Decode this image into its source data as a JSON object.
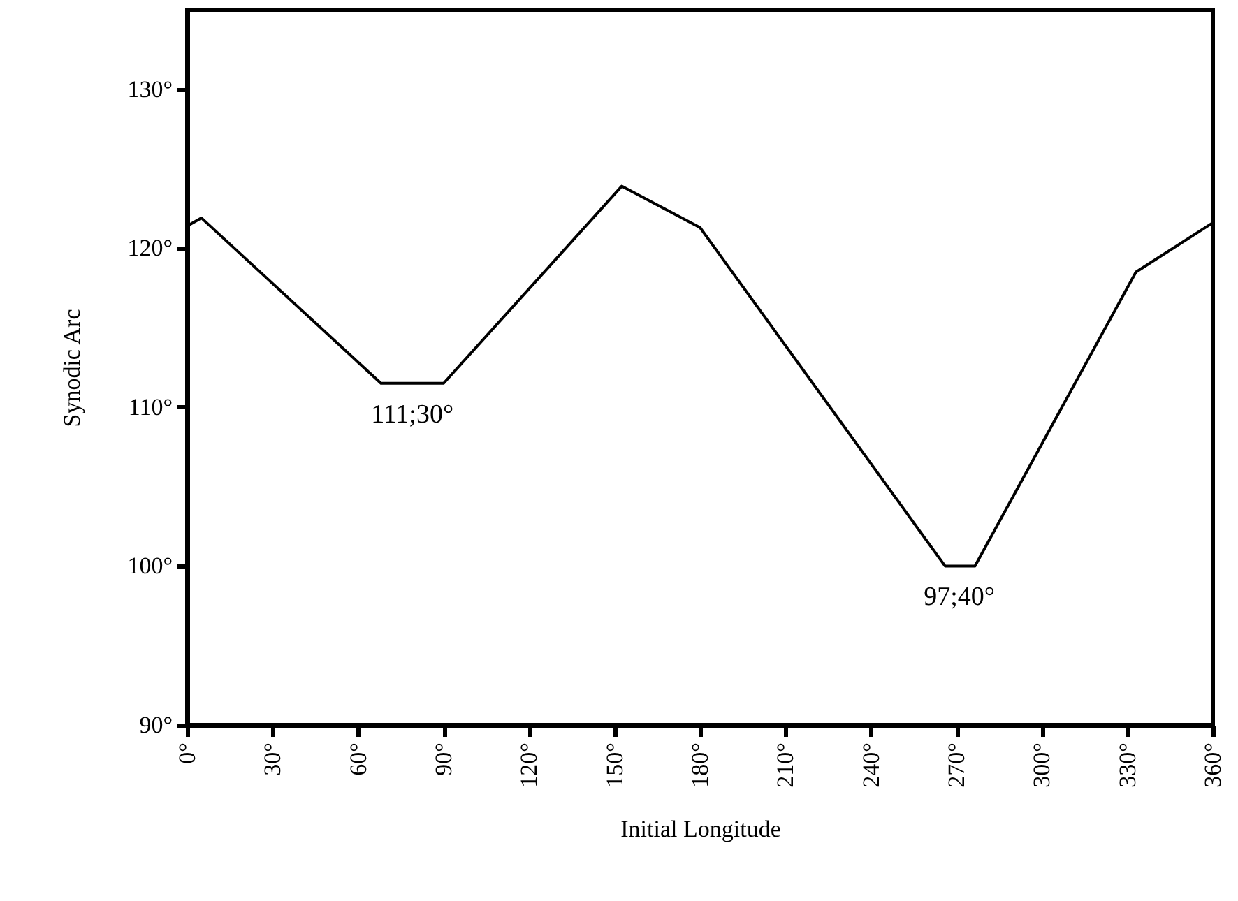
{
  "chart_data": {
    "type": "line",
    "xlabel": "Initial Longitude",
    "ylabel": "Synodic Arc",
    "x": [
      0,
      5,
      68,
      90,
      152.5,
      180,
      266,
      276.5,
      333,
      360
    ],
    "series": [
      {
        "color": "#000000",
        "values": [
          121.4,
          121.9,
          111.5,
          111.5,
          123.9,
          121.3,
          100,
          100,
          118.5,
          121.6
        ]
      }
    ],
    "xlim": [
      0,
      360
    ],
    "xticks": [
      {
        "value": 0,
        "label": "0°"
      },
      {
        "value": 30,
        "label": "30°"
      },
      {
        "value": 60,
        "label": "60°"
      },
      {
        "value": 90,
        "label": "90°"
      },
      {
        "value": 120,
        "label": "120°"
      },
      {
        "value": 150,
        "label": "150°"
      },
      {
        "value": 180,
        "label": "180°"
      },
      {
        "value": 210,
        "label": "210°"
      },
      {
        "value": 240,
        "label": "240°"
      },
      {
        "value": 270,
        "label": "270°"
      },
      {
        "value": 300,
        "label": "300°"
      },
      {
        "value": 330,
        "label": "330°"
      },
      {
        "value": 360,
        "label": "360°"
      }
    ],
    "ylim": [
      90,
      135
    ],
    "yticks": [
      {
        "value": 90,
        "label": "90°"
      },
      {
        "value": 100,
        "label": "100°"
      },
      {
        "value": 110,
        "label": "110°"
      },
      {
        "value": 120,
        "label": "120°"
      },
      {
        "value": 130,
        "label": "130°"
      }
    ],
    "annotations": [
      {
        "text": "111;30°",
        "x": 79,
        "y": 111.5
      },
      {
        "text": "97;40°",
        "x": 271,
        "y": 100
      }
    ],
    "grid": false,
    "marker": "none",
    "line_style": "solid"
  }
}
